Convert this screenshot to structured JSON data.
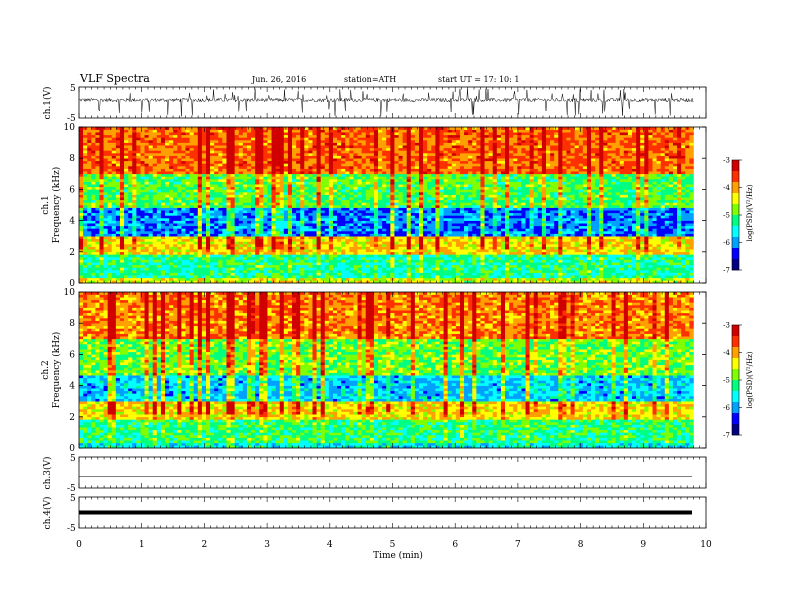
{
  "header": {
    "title": "VLF  Spectra",
    "date": "Jun. 26, 2016",
    "station": "station=ATH",
    "start": "start  UT  =    17: 10: 1"
  },
  "chart_data": [
    {
      "type": "line",
      "panel": "ch1-waveform",
      "ylabel": "ch.1(V)",
      "yticks": [
        "5",
        "-5"
      ],
      "ylim": [
        -5,
        5
      ],
      "xlim": [
        0,
        10
      ]
    },
    {
      "type": "heatmap",
      "panel": "ch1-spectrogram",
      "ylabel": "ch.1\nFrequency  (kHz)",
      "ylabel_lines": [
        "ch.1",
        "Frequency  (kHz)"
      ],
      "ylim": [
        0,
        10
      ],
      "yticks": [
        "10",
        "8",
        "6",
        "4",
        "2",
        "0"
      ],
      "xlim": [
        0,
        9.8
      ],
      "colorbar": {
        "label": "log(PSD)(V²/Hz)",
        "ticks": [
          "-3",
          "-4",
          "-5",
          "-6",
          "-7"
        ],
        "range": [
          -7,
          -3
        ]
      },
      "bands": [
        {
          "from_khz": 0,
          "to_khz": 0.35,
          "level": -4.6
        },
        {
          "from_khz": 0.35,
          "to_khz": 1.8,
          "level": -5.3
        },
        {
          "from_khz": 1.8,
          "to_khz": 3.0,
          "level": -4.3
        },
        {
          "from_khz": 3.0,
          "to_khz": 4.8,
          "level": -6.1
        },
        {
          "from_khz": 4.8,
          "to_khz": 7.0,
          "level": -5.0
        },
        {
          "from_khz": 7.0,
          "to_khz": 10.0,
          "level": -3.8
        }
      ]
    },
    {
      "type": "heatmap",
      "panel": "ch2-spectrogram",
      "ylabel": "ch.2\nFrequency  (kHz)",
      "ylabel_lines": [
        "ch.2",
        "Frequency  (kHz)"
      ],
      "ylim": [
        0,
        10
      ],
      "yticks": [
        "10",
        "8",
        "6",
        "4",
        "2",
        "0"
      ],
      "xlim": [
        0,
        9.8
      ],
      "colorbar": {
        "label": "log(PSD)(V²/Hz)",
        "ticks": [
          "-3",
          "-4",
          "-5",
          "-6",
          "-7"
        ],
        "range": [
          -7,
          -3
        ]
      },
      "bands": [
        {
          "from_khz": 0,
          "to_khz": 0.4,
          "level": -5.6
        },
        {
          "from_khz": 0.4,
          "to_khz": 1.8,
          "level": -5.2
        },
        {
          "from_khz": 1.8,
          "to_khz": 3.0,
          "level": -4.3
        },
        {
          "from_khz": 3.0,
          "to_khz": 4.6,
          "level": -5.8
        },
        {
          "from_khz": 4.6,
          "to_khz": 7.0,
          "level": -4.9
        },
        {
          "from_khz": 7.0,
          "to_khz": 10.0,
          "level": -3.9
        }
      ]
    },
    {
      "type": "line",
      "panel": "ch3-waveform",
      "ylabel": "ch.3(V)",
      "yticks": [
        "5",
        "-5"
      ],
      "ylim": [
        -5,
        5
      ],
      "level": 0
    },
    {
      "type": "line",
      "panel": "ch4-waveform",
      "ylabel": "ch.4(V)",
      "yticks": [
        "5",
        "-5"
      ],
      "ylim": [
        -5,
        5
      ],
      "level": 0
    }
  ],
  "xaxis": {
    "label": "Time  (min)",
    "ticks": [
      "0",
      "1",
      "2",
      "3",
      "4",
      "5",
      "6",
      "7",
      "8",
      "9",
      "10"
    ],
    "range": [
      0,
      10
    ]
  },
  "colors": {
    "scale": [
      "#000080",
      "#0000ff",
      "#00a0ff",
      "#00ffff",
      "#00ff80",
      "#80ff00",
      "#ffff00",
      "#ffa000",
      "#ff3000",
      "#d00000"
    ]
  }
}
